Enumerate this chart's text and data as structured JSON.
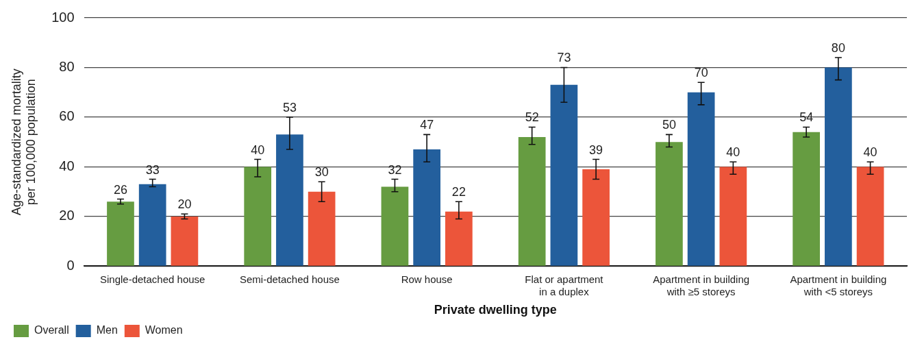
{
  "chart_data": {
    "type": "bar",
    "xlabel": "Private dwelling type",
    "ylabel": "Age-standardized mortality\nper 100,000 population",
    "categories": [
      "Single-detached house",
      "Semi-detached house",
      "Row house",
      "Flat or apartment\nin a duplex",
      "Apartment in building\nwith ≥5 storeys",
      "Apartment in building\nwith <5 storeys"
    ],
    "series": [
      {
        "name": "Overall",
        "color": "#669c41",
        "values": [
          26,
          40,
          32,
          52,
          50,
          54
        ],
        "errors": [
          [
            25,
            27
          ],
          [
            36,
            43
          ],
          [
            30,
            35
          ],
          [
            49,
            56
          ],
          [
            48,
            53
          ],
          [
            52,
            56
          ]
        ]
      },
      {
        "name": "Men",
        "color": "#235f9d",
        "values": [
          33,
          53,
          47,
          73,
          70,
          80
        ],
        "errors": [
          [
            32,
            35
          ],
          [
            47,
            60
          ],
          [
            42,
            53
          ],
          [
            66,
            80
          ],
          [
            65,
            74
          ],
          [
            75,
            84
          ]
        ]
      },
      {
        "name": "Women",
        "color": "#ec553a",
        "values": [
          20,
          30,
          22,
          39,
          40,
          40
        ],
        "errors": [
          [
            19,
            21
          ],
          [
            26,
            34
          ],
          [
            19,
            26
          ],
          [
            35,
            43
          ],
          [
            37,
            42
          ],
          [
            37,
            42
          ]
        ]
      }
    ],
    "ylim": [
      0,
      100
    ],
    "yticks": [
      0,
      20,
      40,
      60,
      80,
      100
    ],
    "grid": "y",
    "legend": "bottom left",
    "data_labels": true
  }
}
